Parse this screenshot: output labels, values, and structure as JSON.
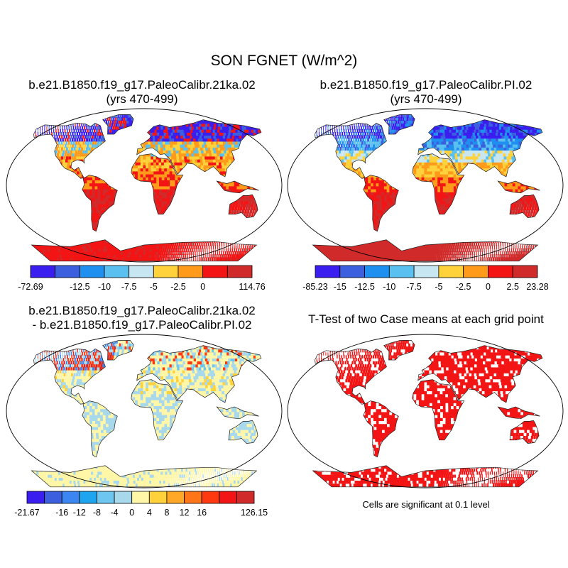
{
  "title": "SON FGNET (W/m^2)",
  "panels": [
    {
      "title_line1": "b.e21.B1850.f19_g17.PaleoCalibr.21ka.02",
      "title_line2": "(yrs 470-499)",
      "colorbar": {
        "colors": [
          "#3a1ef0",
          "#3c5fe0",
          "#1f8ff0",
          "#5ac0f0",
          "#c6e6f2",
          "#ffd23c",
          "#ff9a1a",
          "#f31515",
          "#d12a2a"
        ],
        "labels": [
          "-72.69",
          "-12.5",
          "-10",
          "-7.5",
          "-5",
          "-2.5",
          "0",
          "114.76"
        ],
        "label_boundaries": [
          0,
          2,
          3,
          4,
          5,
          6,
          7,
          9
        ]
      }
    },
    {
      "title_line1": "b.e21.B1850.f19_g17.PaleoCalibr.PI.02",
      "title_line2": "(yrs 470-499)",
      "colorbar": {
        "colors": [
          "#3a1ef0",
          "#3c5fe0",
          "#1f8ff0",
          "#5ac0f0",
          "#c6e6f2",
          "#ffd23c",
          "#ff9a1a",
          "#f31515",
          "#d12a2a"
        ],
        "labels": [
          "-85.23",
          "-15",
          "-12.5",
          "-10",
          "-7.5",
          "-5",
          "-2.5",
          "0",
          "2.5",
          "23.28"
        ],
        "label_boundaries": [
          0,
          1,
          2,
          3,
          4,
          5,
          6,
          7,
          8,
          9
        ]
      }
    },
    {
      "title_line1": "b.e21.B1850.f19_g17.PaleoCalibr.21ka.02",
      "title_line2": "- b.e21.B1850.f19_g17.PaleoCalibr.PI.02",
      "colorbar": {
        "colors": [
          "#3a1ef0",
          "#3c5fe0",
          "#3b86f0",
          "#1fa4f0",
          "#6cc6f0",
          "#a8d8ec",
          "#fff6a8",
          "#ffd23c",
          "#ffa726",
          "#ff7518",
          "#ff3a10",
          "#f31515",
          "#d12a2a"
        ],
        "labels": [
          "-21.67",
          "-16",
          "-12",
          "-8",
          "-4",
          "0",
          "4",
          "8",
          "12",
          "16",
          "126.15"
        ],
        "label_boundaries": [
          0,
          2,
          3,
          4,
          5,
          6,
          7,
          8,
          9,
          10,
          13
        ]
      }
    },
    {
      "title_line1": "T-Test of two Case means at each grid point",
      "title_line2": "",
      "note": "Cells are significant at 0.1 level"
    }
  ]
}
